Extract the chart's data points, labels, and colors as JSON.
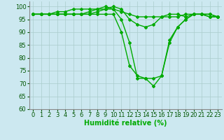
{
  "xlabel": "Humidité relative (%)",
  "ylim": [
    60,
    102
  ],
  "xlim": [
    -0.5,
    23.5
  ],
  "yticks": [
    60,
    65,
    70,
    75,
    80,
    85,
    90,
    95,
    100
  ],
  "xticks": [
    0,
    1,
    2,
    3,
    4,
    5,
    6,
    7,
    8,
    9,
    10,
    11,
    12,
    13,
    14,
    15,
    16,
    17,
    18,
    19,
    20,
    21,
    22,
    23
  ],
  "background_color": "#cce8f0",
  "grid_color": "#aacccc",
  "line_color": "#00aa00",
  "lines": [
    [
      97,
      97,
      97,
      97,
      97,
      97,
      97,
      97,
      98,
      99,
      100,
      99,
      95,
      93,
      92,
      93,
      96,
      97,
      97,
      96,
      97,
      97,
      96,
      96
    ],
    [
      97,
      97,
      97,
      98,
      98,
      99,
      99,
      99,
      99,
      99,
      99,
      98,
      97,
      96,
      96,
      96,
      96,
      96,
      96,
      97,
      97,
      97,
      97,
      96
    ],
    [
      97,
      97,
      97,
      97,
      97,
      97,
      97,
      97,
      97,
      97,
      97,
      90,
      77,
      73,
      72,
      69,
      73,
      87,
      92,
      95,
      97,
      97,
      96,
      96
    ],
    [
      97,
      97,
      97,
      97,
      97,
      97,
      97,
      98,
      99,
      100,
      99,
      95,
      86,
      72,
      72,
      72,
      73,
      86,
      92,
      95,
      97,
      97,
      97,
      96
    ]
  ],
  "xlabel_fontsize": 7,
  "tick_fontsize": 6,
  "line_width": 1.0,
  "marker": "D",
  "marker_size": 2.0
}
